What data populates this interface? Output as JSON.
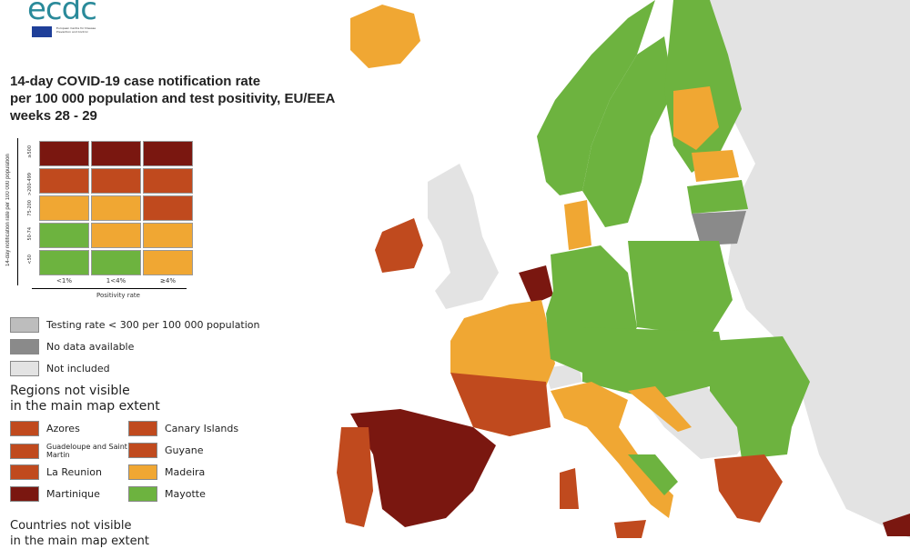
{
  "logo": {
    "text": "ecdc",
    "subtitle": "European Centre for Disease Prevention and Control"
  },
  "title": [
    "14-day COVID-19 case notification rate",
    "per 100 000 population and test positivity, EU/EEA",
    "weeks 28 - 29"
  ],
  "colors": {
    "dark_red": "#7a1710",
    "red": "#c04a1e",
    "orange": "#f0a733",
    "green": "#6db33f",
    "no_data": "#8a8a8a",
    "testing_low": "#bdbdbd",
    "not_included": "#e3e3e3"
  },
  "matrix": {
    "y_axis_label": "14-day notification rate per 100 000 population",
    "x_axis_label": "Positivity rate",
    "rows": [
      "≥500",
      ">200-499",
      "75-200",
      "50-74",
      "<50"
    ],
    "cols": [
      "<1%",
      "1<4%",
      "≥4%"
    ],
    "cells": [
      [
        "dark_red",
        "dark_red",
        "dark_red"
      ],
      [
        "red",
        "red",
        "red"
      ],
      [
        "orange",
        "orange",
        "red"
      ],
      [
        "green",
        "orange",
        "orange"
      ],
      [
        "green",
        "green",
        "orange"
      ]
    ]
  },
  "legend": [
    {
      "label": "Testing rate < 300 per 100 000 population",
      "color": "testing_low"
    },
    {
      "label": "No data available",
      "color": "no_data"
    },
    {
      "label": "Not included",
      "color": "not_included"
    }
  ],
  "regions_heading": [
    "Regions not visible",
    "in the main map extent"
  ],
  "regions": [
    {
      "label": "Azores",
      "color": "red"
    },
    {
      "label": "Canary Islands",
      "color": "red"
    },
    {
      "label": "Guadeloupe and Saint Martin",
      "color": "red"
    },
    {
      "label": "Guyane",
      "color": "red"
    },
    {
      "label": "La Reunion",
      "color": "red"
    },
    {
      "label": "Madeira",
      "color": "orange"
    },
    {
      "label": "Martinique",
      "color": "dark_red"
    },
    {
      "label": "Mayotte",
      "color": "green"
    }
  ],
  "countries_heading": [
    "Countries not visible",
    "in the main map extent"
  ]
}
